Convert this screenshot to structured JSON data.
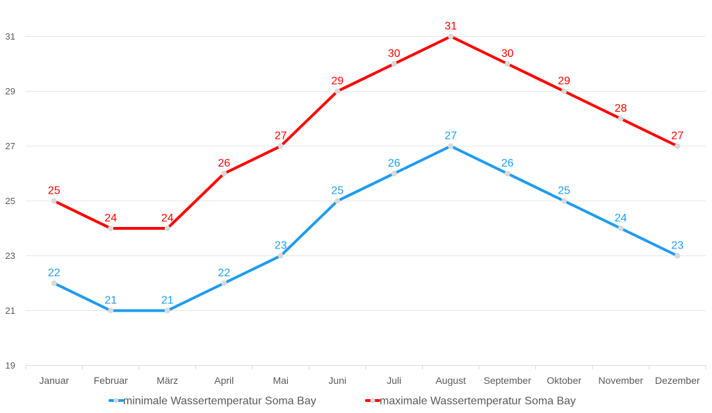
{
  "chart_data": {
    "type": "line",
    "title": "",
    "xlabel": "",
    "ylabel": "",
    "categories": [
      "Januar",
      "Februar",
      "März",
      "April",
      "Mai",
      "Juni",
      "Juli",
      "August",
      "September",
      "Oktober",
      "November",
      "Dezember"
    ],
    "series": [
      {
        "name": "minimale Wassertemperatur Soma Bay",
        "color": "#1f9bef",
        "values": [
          22,
          21,
          21,
          22,
          23,
          25,
          26,
          27,
          26,
          25,
          24,
          23
        ]
      },
      {
        "name": "maximale Wassertemperatur Soma Bay",
        "color": "#ff0000",
        "values": [
          25,
          24,
          24,
          26,
          27,
          29,
          30,
          31,
          30,
          29,
          28,
          27
        ]
      }
    ],
    "ylim": [
      19,
      31
    ],
    "yticks": [
      19,
      21,
      23,
      25,
      27,
      29,
      31
    ],
    "grid": true,
    "legend": "bottom",
    "marker_color": "#d9d9d9",
    "data_labels": true
  }
}
